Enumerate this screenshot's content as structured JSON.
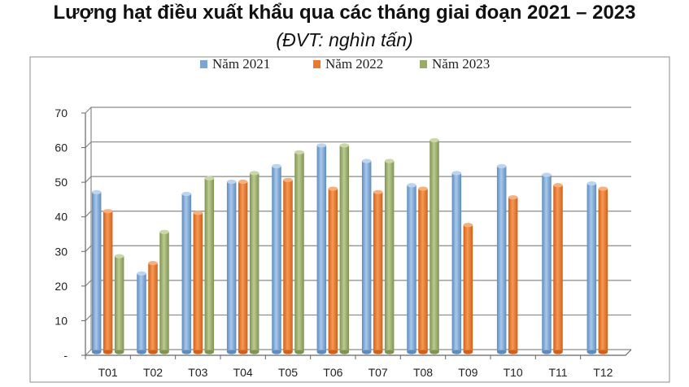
{
  "title": "Lượng hạt điều xuất khẩu qua các tháng giai đoạn 2021 – 2023",
  "subtitle": "(ĐVT: nghìn tấn)",
  "colors": {
    "s2021": "#7ba6d4",
    "s2022": "#ec7a2e",
    "s2023": "#9aac6a"
  },
  "chart_data": {
    "type": "bar",
    "categories": [
      "T01",
      "T02",
      "T03",
      "T04",
      "T05",
      "T06",
      "T07",
      "T08",
      "T09",
      "T10",
      "T11",
      "T12"
    ],
    "series": [
      {
        "name": "Năm 2021",
        "values": [
          45.5,
          22,
          45,
          48.5,
          53,
          59,
          54.5,
          47.5,
          51,
          53,
          50.5,
          48
        ]
      },
      {
        "name": "Năm 2022",
        "values": [
          40,
          25,
          39.5,
          48.5,
          49,
          46.5,
          45.5,
          46.5,
          36,
          44,
          47.5,
          46.5
        ]
      },
      {
        "name": "Năm 2023",
        "values": [
          27,
          34,
          49.5,
          51,
          57,
          59,
          54.5,
          60.5,
          null,
          null,
          null,
          null
        ]
      }
    ],
    "y_ticks": [
      "-",
      "10",
      "20",
      "30",
      "40",
      "50",
      "60",
      "70"
    ],
    "ylim": [
      0,
      70
    ],
    "legend": "top",
    "grid": true
  }
}
